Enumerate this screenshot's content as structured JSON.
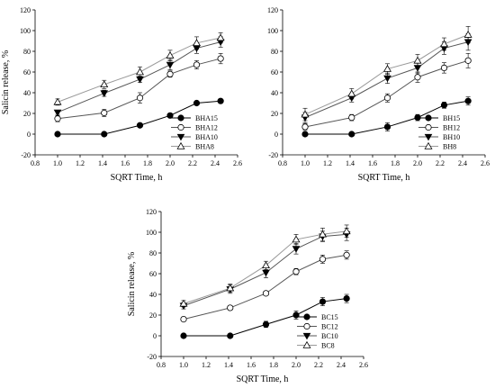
{
  "chart_data": [
    {
      "type": "scatter",
      "xlabel": "SQRT Time, h",
      "ylabel": "Salicin release, %",
      "xlim": [
        0.8,
        2.6
      ],
      "ylim": [
        -20,
        120
      ],
      "xticks": [
        "0.8",
        "1.0",
        "1.2",
        "1.4",
        "1.6",
        "1.8",
        "2.0",
        "2.2",
        "2.4",
        "2.6"
      ],
      "yticks": [
        "-20",
        "0",
        "20",
        "40",
        "60",
        "80",
        "100",
        "120"
      ],
      "x": [
        1.0,
        1.414,
        1.732,
        2.0,
        2.236,
        2.449
      ],
      "legend_position": "bottom-right",
      "series": [
        {
          "name": "BHA15",
          "marker": "filled-circle",
          "values": [
            0,
            0,
            8.5,
            18,
            30,
            32
          ],
          "err": [
            1,
            1,
            1.5,
            2,
            1.5,
            1.5
          ]
        },
        {
          "name": "BHA12",
          "marker": "open-circle",
          "values": [
            15,
            20.5,
            35,
            58,
            67,
            73
          ],
          "err": [
            3,
            3.5,
            5,
            3,
            4,
            5
          ]
        },
        {
          "name": "BHA10",
          "marker": "filled-triangle-down",
          "values": [
            21,
            39.5,
            53,
            67,
            83,
            89
          ],
          "err": [
            2,
            3,
            3,
            5,
            5,
            5
          ]
        },
        {
          "name": "BHA8",
          "marker": "open-triangle-up",
          "values": [
            31,
            48,
            60,
            76,
            88,
            93
          ],
          "err": [
            3,
            4,
            5,
            5,
            6,
            5
          ]
        }
      ]
    },
    {
      "type": "scatter",
      "xlabel": "SQRT Time, h",
      "ylabel": "",
      "xlim": [
        0.8,
        2.6
      ],
      "ylim": [
        -20,
        120
      ],
      "xticks": [
        "0.8",
        "1.0",
        "1.2",
        "1.4",
        "1.6",
        "1.8",
        "2.0",
        "2.2",
        "2.4",
        "2.6"
      ],
      "yticks": [
        "-20",
        "0",
        "20",
        "40",
        "60",
        "80",
        "100",
        "120"
      ],
      "x": [
        1.0,
        1.414,
        1.732,
        2.0,
        2.236,
        2.449
      ],
      "legend_position": "bottom-right",
      "series": [
        {
          "name": "BH15",
          "marker": "filled-circle",
          "values": [
            0,
            0,
            7,
            16,
            28,
            32
          ],
          "err": [
            1,
            1,
            4,
            3,
            3,
            4
          ]
        },
        {
          "name": "BH12",
          "marker": "open-circle",
          "values": [
            7,
            16,
            35,
            55,
            64,
            71
          ],
          "err": [
            3,
            3,
            4,
            5,
            5,
            7
          ]
        },
        {
          "name": "BH10",
          "marker": "filled-triangle-down",
          "values": [
            16,
            35,
            54,
            64,
            83,
            89
          ],
          "err": [
            5,
            4,
            5,
            5,
            6,
            8
          ]
        },
        {
          "name": "BH8",
          "marker": "open-triangle-up",
          "values": [
            19,
            39,
            63,
            71,
            87,
            96
          ],
          "err": [
            6,
            5,
            5,
            6,
            6,
            8
          ]
        }
      ]
    },
    {
      "type": "scatter",
      "xlabel": "SQRT Time, h",
      "ylabel": "Salicin release, %",
      "xlim": [
        0.8,
        2.6
      ],
      "ylim": [
        -20,
        120
      ],
      "xticks": [
        "0.8",
        "1.0",
        "1.2",
        "1.4",
        "1.6",
        "1.8",
        "2.0",
        "2.2",
        "2.4",
        "2.6"
      ],
      "yticks": [
        "-20",
        "0",
        "20",
        "40",
        "60",
        "80",
        "100",
        "120"
      ],
      "x": [
        1.0,
        1.414,
        1.732,
        2.0,
        2.236,
        2.449
      ],
      "legend_position": "bottom-right",
      "series": [
        {
          "name": "BC15",
          "marker": "filled-circle",
          "values": [
            0,
            0,
            11,
            20,
            33,
            36
          ],
          "err": [
            1,
            1,
            3,
            4,
            4,
            4
          ]
        },
        {
          "name": "BC12",
          "marker": "open-circle",
          "values": [
            16,
            27,
            41,
            62,
            74,
            78
          ],
          "err": [
            1,
            2,
            1,
            3,
            4,
            4
          ]
        },
        {
          "name": "BC10",
          "marker": "filled-triangle-down",
          "values": [
            29,
            45,
            61,
            84,
            96,
            98
          ],
          "err": [
            3,
            4,
            5,
            5,
            5,
            6
          ]
        },
        {
          "name": "BC8",
          "marker": "open-triangle-up",
          "values": [
            31,
            46,
            68,
            93,
            98,
            101
          ],
          "err": [
            3,
            4,
            4,
            5,
            6,
            6
          ]
        }
      ]
    }
  ]
}
